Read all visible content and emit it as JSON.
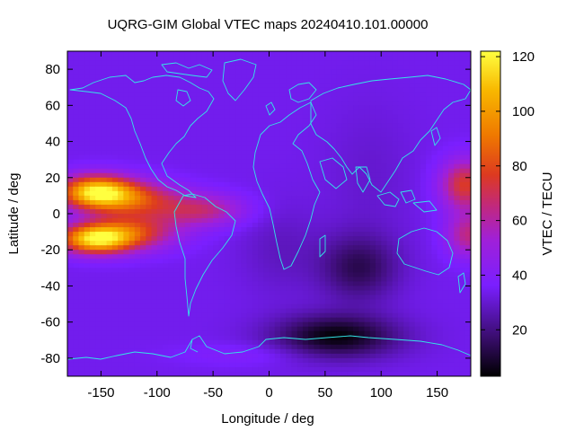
{
  "chart_data": {
    "type": "heatmap",
    "title": "UQRG-GIM Global VTEC maps 20240410.101.00000",
    "xlabel": "Longitude / deg",
    "ylabel": "Latitude / deg",
    "colorbar_label": "VTEC / TECU",
    "xlim": [
      -180,
      180
    ],
    "ylim": [
      -90,
      90
    ],
    "x_ticks": [
      -150,
      -100,
      -50,
      0,
      50,
      100,
      150
    ],
    "y_ticks": [
      -80,
      -60,
      -40,
      -20,
      0,
      20,
      40,
      60,
      80
    ],
    "colorbar_range": [
      3,
      122
    ],
    "colorbar_ticks": [
      20,
      40,
      60,
      80,
      100,
      120
    ],
    "colormap": "gnuplot palette: black-purple-red-orange-yellow",
    "coastline_color": "#33e6e6",
    "grid": false,
    "features": [
      {
        "description": "equatorial anomaly crest north",
        "lon": -160,
        "lat": 12,
        "vtec": 115
      },
      {
        "description": "equatorial anomaly crest south",
        "lon": -155,
        "lat": -15,
        "vtec": 115
      },
      {
        "description": "east Pacific crest north",
        "lon": 175,
        "lat": 15,
        "vtec": 75
      },
      {
        "description": "east Pacific crest south",
        "lon": 175,
        "lat": -15,
        "vtec": 62
      },
      {
        "description": "Atlantic equatorial band",
        "lon": -60,
        "lat": 0,
        "vtec": 65
      },
      {
        "description": "Antarctic low",
        "lon": 60,
        "lat": -68,
        "vtec": 4
      },
      {
        "description": "Indian Ocean low",
        "lon": 75,
        "lat": -30,
        "vtec": 12
      }
    ]
  }
}
